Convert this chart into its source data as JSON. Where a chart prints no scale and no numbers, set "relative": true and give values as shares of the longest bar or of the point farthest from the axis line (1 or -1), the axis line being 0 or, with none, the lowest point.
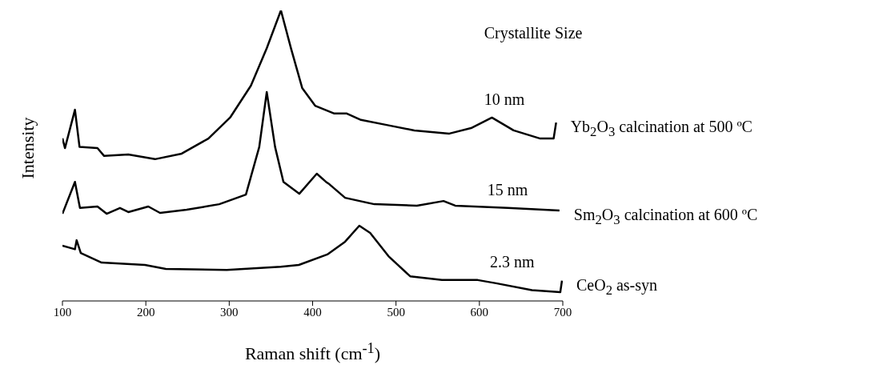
{
  "chart_data": {
    "type": "line",
    "relative": true,
    "xlabel": "Raman shift (cm$^{-1}$)",
    "ylabel": "Intensity",
    "xlim": [
      100,
      700
    ],
    "xticks": [
      100,
      200,
      300,
      400,
      500,
      600,
      700
    ],
    "marker": "none",
    "line_style": "solid",
    "annotations": [
      "Crystallite Size",
      "10 nm",
      "15 nm",
      "2.3 nm"
    ],
    "series": [
      {
        "name": "Yb$_{2}$O$_{3}$ calcination at 500 ºC",
        "color": "#000000",
        "x": [
          100,
          103,
          115,
          120.5,
          142,
          150,
          179,
          211,
          243,
          275,
          301,
          326,
          345,
          362,
          374,
          387.5,
          403,
          426,
          441,
          458,
          490,
          522,
          564,
          590,
          615,
          641,
          673,
          689,
          692
        ],
        "values": [
          0.56,
          0.526,
          0.658,
          0.53,
          0.526,
          0.499,
          0.504,
          0.488,
          0.507,
          0.559,
          0.631,
          0.741,
          0.87,
          1.0,
          0.87,
          0.733,
          0.672,
          0.645,
          0.645,
          0.623,
          0.605,
          0.587,
          0.576,
          0.595,
          0.631,
          0.587,
          0.559,
          0.559,
          0.614
        ]
      },
      {
        "name": "Sm$_{2}$O$_{3}$ calcination at 600 ºC",
        "color": "#000000",
        "x": [
          100,
          115,
          121,
          142,
          153,
          169,
          179,
          203,
          217,
          249,
          288,
          320,
          336,
          345,
          355,
          365,
          384,
          405,
          416,
          420,
          439,
          474,
          525,
          557,
          571,
          634,
          696
        ],
        "values": [
          0.3,
          0.41,
          0.32,
          0.325,
          0.3,
          0.32,
          0.306,
          0.325,
          0.303,
          0.314,
          0.333,
          0.366,
          0.53,
          0.719,
          0.53,
          0.41,
          0.369,
          0.438,
          0.41,
          0.402,
          0.355,
          0.333,
          0.328,
          0.344,
          0.328,
          0.32,
          0.311
        ]
      },
      {
        "name": "CeO$_{2}$ as-syn",
        "color": "#000000",
        "x": [
          100,
          115,
          117,
          122,
          147,
          199,
          224,
          297,
          362,
          383.5,
          417.6,
          439,
          456,
          469,
          491,
          517,
          555,
          598,
          620,
          663,
          697,
          699
        ],
        "values": [
          0.19,
          0.178,
          0.209,
          0.165,
          0.132,
          0.124,
          0.11,
          0.107,
          0.118,
          0.124,
          0.16,
          0.204,
          0.259,
          0.234,
          0.154,
          0.085,
          0.072,
          0.072,
          0.061,
          0.037,
          0.03,
          0.07
        ]
      }
    ]
  }
}
